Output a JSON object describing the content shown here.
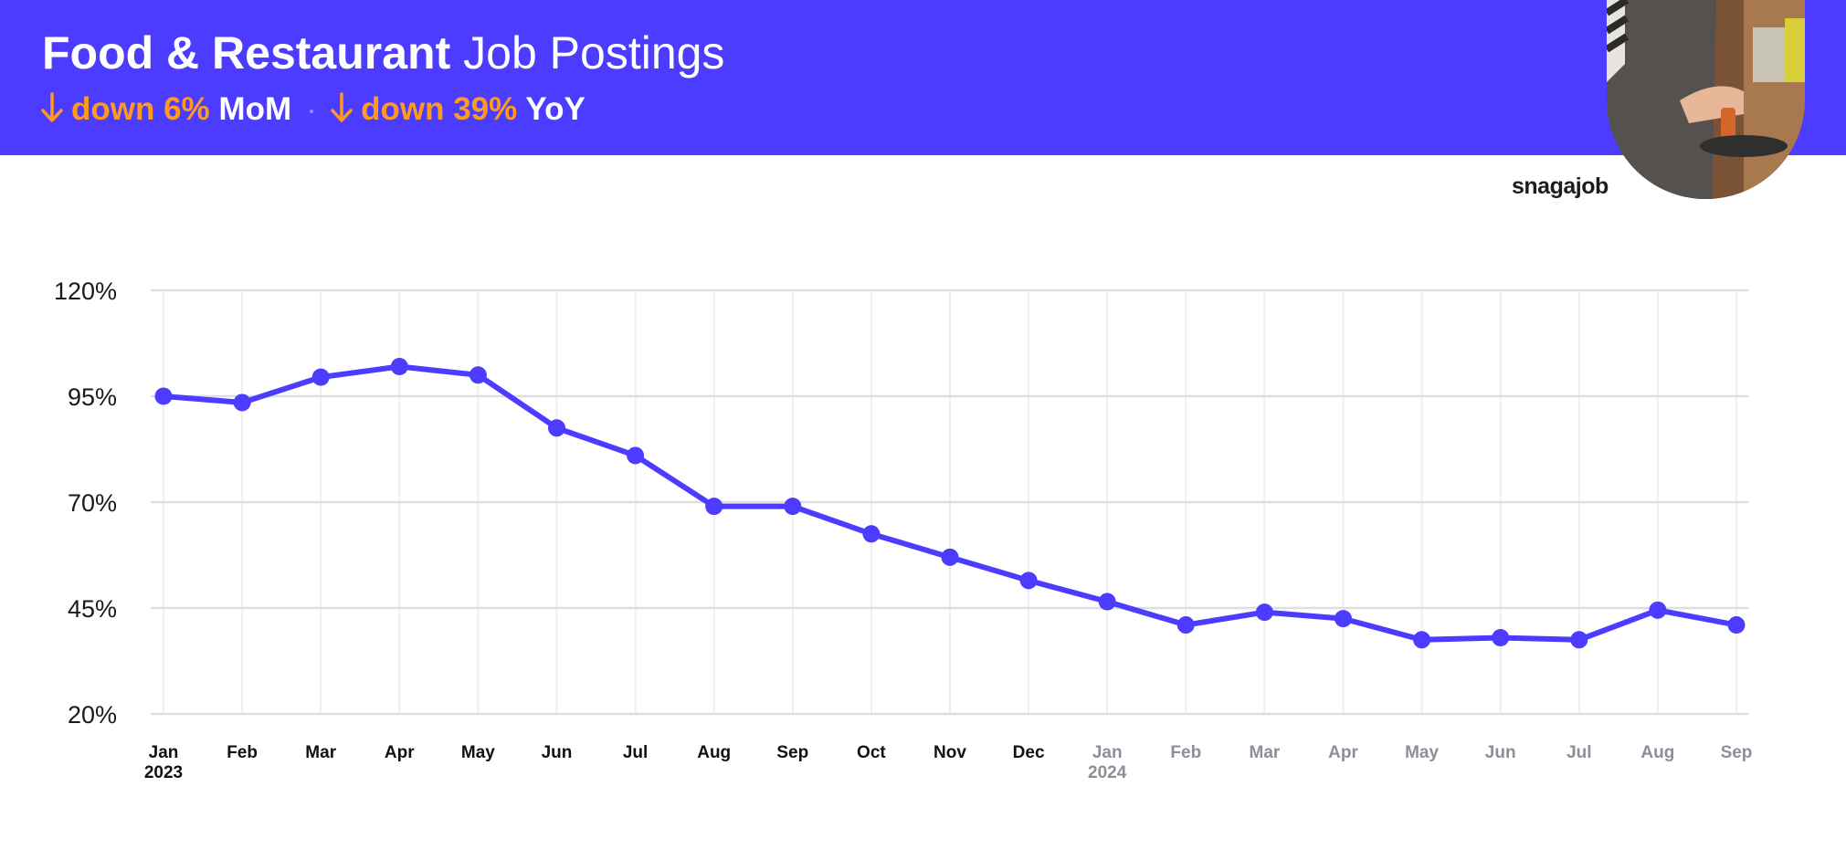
{
  "header": {
    "title_bold": "Food & Restaurant",
    "title_rest": "Job Postings",
    "mom_text": "down 6%",
    "mom_label": "MoM",
    "yoy_text": "down 39%",
    "yoy_label": "YoY",
    "arrow_icon": "arrow-down-icon",
    "bg_color": "#4b3cff",
    "accent_color": "#ff9a1f"
  },
  "brand": {
    "logo_text": "snagajob"
  },
  "chart_data": {
    "type": "line",
    "title": "Food & Restaurant Job Postings",
    "xlabel": "",
    "ylabel": "",
    "x": [
      "Jan 2023",
      "Feb 2023",
      "Mar 2023",
      "Apr 2023",
      "May 2023",
      "Jun 2023",
      "Jul 2023",
      "Aug 2023",
      "Sep 2023",
      "Oct 2023",
      "Nov 2023",
      "Dec 2023",
      "Jan 2024",
      "Feb 2024",
      "Mar 2024",
      "Apr 2024",
      "May 2024",
      "Jun 2024",
      "Jul 2024",
      "Aug 2024",
      "Sep 2024"
    ],
    "tick_labels": [
      {
        "month": "Jan",
        "year": "2023"
      },
      {
        "month": "Feb",
        "year": ""
      },
      {
        "month": "Mar",
        "year": ""
      },
      {
        "month": "Apr",
        "year": ""
      },
      {
        "month": "May",
        "year": ""
      },
      {
        "month": "Jun",
        "year": ""
      },
      {
        "month": "Jul",
        "year": ""
      },
      {
        "month": "Aug",
        "year": ""
      },
      {
        "month": "Sep",
        "year": ""
      },
      {
        "month": "Oct",
        "year": ""
      },
      {
        "month": "Nov",
        "year": ""
      },
      {
        "month": "Dec",
        "year": ""
      },
      {
        "month": "Jan",
        "year": "2024"
      },
      {
        "month": "Feb",
        "year": ""
      },
      {
        "month": "Mar",
        "year": ""
      },
      {
        "month": "Apr",
        "year": ""
      },
      {
        "month": "May",
        "year": ""
      },
      {
        "month": "Jun",
        "year": ""
      },
      {
        "month": "Jul",
        "year": ""
      },
      {
        "month": "Aug",
        "year": ""
      },
      {
        "month": "Sep",
        "year": ""
      }
    ],
    "series": [
      {
        "values": [
          95,
          93.5,
          99.5,
          102,
          100,
          87.5,
          81,
          69,
          69,
          62.5,
          57,
          51.5,
          46.5,
          41,
          44,
          42.5,
          37.5,
          38,
          37.5,
          44.5,
          41
        ]
      }
    ],
    "yticks": [
      "20%",
      "45%",
      "70%",
      "95%",
      "120%"
    ],
    "ytick_values": [
      20,
      45,
      70,
      95,
      120
    ],
    "ylim": [
      20,
      120
    ],
    "grid": true,
    "line_color": "#4b3cff",
    "tick_color_2023": "#111111",
    "tick_color_2024": "#8e8e9a"
  }
}
